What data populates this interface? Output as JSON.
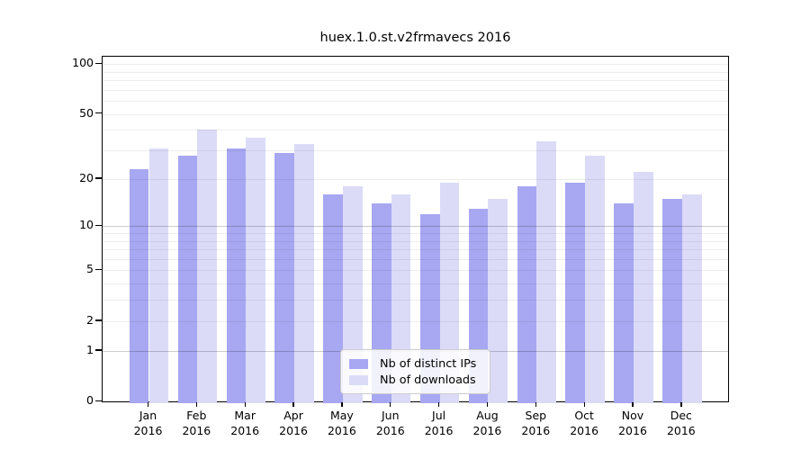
{
  "chart_data": {
    "type": "bar",
    "title": "huex.1.0.st.v2frmavecs 2016",
    "categories": [
      "Jan",
      "Feb",
      "Mar",
      "Apr",
      "May",
      "Jun",
      "Jul",
      "Aug",
      "Sep",
      "Oct",
      "Nov",
      "Dec"
    ],
    "year_label": "2016",
    "series": [
      {
        "name": "Nb of distinct IPs",
        "color": "#a7a7f2",
        "values": [
          23,
          28,
          31,
          29,
          16,
          14,
          12,
          13,
          18,
          19,
          14,
          15
        ]
      },
      {
        "name": "Nb of downloads",
        "color": "#dbdbf8",
        "values": [
          31,
          40,
          36,
          33,
          18,
          16,
          19,
          15,
          34,
          28,
          22,
          16
        ]
      }
    ],
    "xlabel": "",
    "ylabel": "",
    "y_scale": "log1p",
    "ylim": [
      0,
      111
    ],
    "y_ticks": [
      0,
      1,
      2,
      5,
      10,
      20,
      50,
      100
    ],
    "grid": {
      "minor_values": [
        2,
        3,
        4,
        5,
        6,
        7,
        8,
        9,
        20,
        30,
        40,
        50,
        60,
        70,
        80,
        90,
        100
      ],
      "major_values": [
        1,
        10
      ],
      "minor_color": "rgba(0,0,0,0.07)",
      "major_color": "rgba(0,0,0,0.20)"
    },
    "legend_position": "inside-bottom-center",
    "axis_color": "#000000",
    "background_color": "#ffffff"
  }
}
